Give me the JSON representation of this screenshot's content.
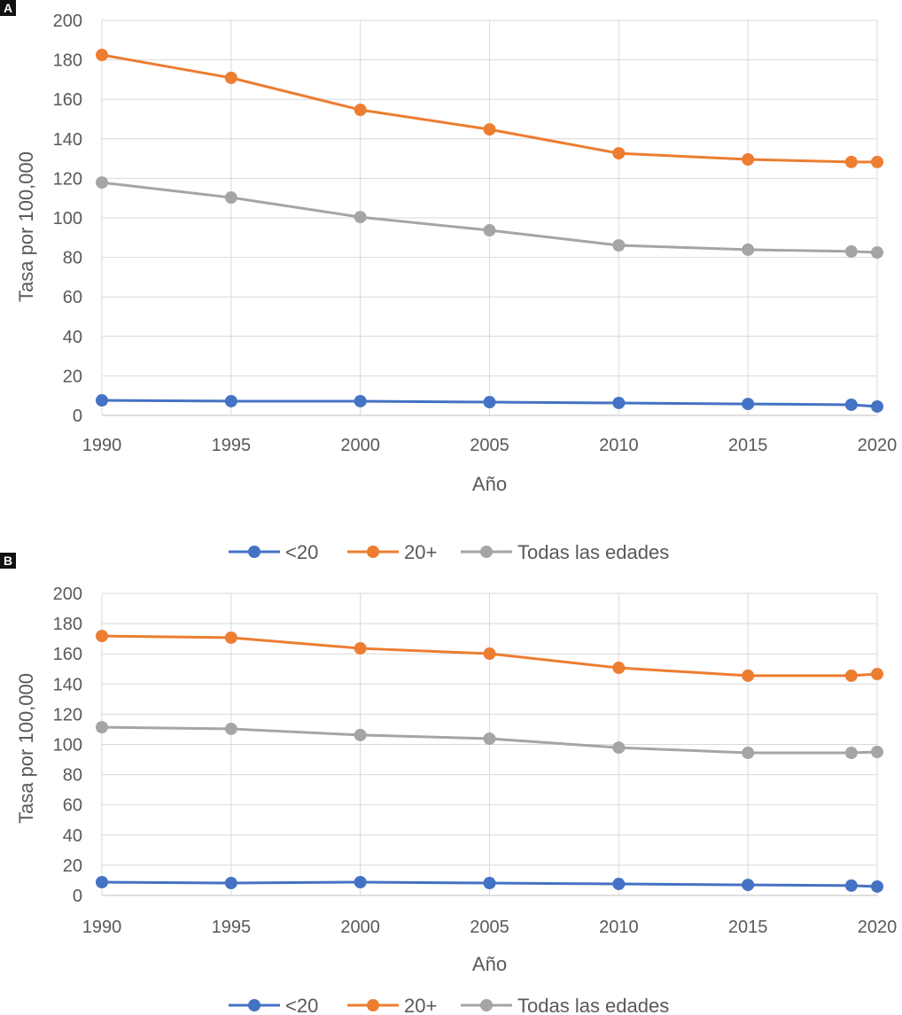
{
  "chart_data": [
    {
      "panel_label": "A",
      "type": "line",
      "xlabel": "Año",
      "ylabel": "Tasa por 100,000",
      "x": [
        1990,
        1995,
        2000,
        2005,
        2010,
        2015,
        2019,
        2020
      ],
      "xticks": [
        1990,
        1995,
        2000,
        2005,
        2010,
        2015,
        2020
      ],
      "xlim": [
        1990,
        2020
      ],
      "ylim": [
        0,
        200
      ],
      "yticks": [
        0,
        20,
        40,
        60,
        80,
        100,
        120,
        140,
        160,
        180,
        200
      ],
      "grid": true,
      "legend_position": "bottom",
      "series": [
        {
          "name": "<20",
          "color": "#4472C4",
          "values": [
            7.6,
            7.2,
            7.2,
            6.7,
            6.3,
            5.8,
            5.4,
            4.5
          ]
        },
        {
          "name": "20+",
          "color": "#ED7D31",
          "values": [
            182.5,
            170.9,
            154.7,
            144.8,
            132.7,
            129.6,
            128.3,
            128.3
          ]
        },
        {
          "name": "Todas las edades",
          "color": "#A5A5A5",
          "values": [
            117.9,
            110.3,
            100.4,
            93.7,
            86.1,
            83.9,
            83.0,
            82.5
          ]
        }
      ]
    },
    {
      "panel_label": "B",
      "type": "line",
      "xlabel": "Año",
      "ylabel": "Tasa por 100,000",
      "x": [
        1990,
        1995,
        2000,
        2005,
        2010,
        2015,
        2019,
        2020
      ],
      "xticks": [
        1990,
        1995,
        2000,
        2005,
        2010,
        2015,
        2020
      ],
      "xlim": [
        1990,
        2020
      ],
      "ylim": [
        0,
        200
      ],
      "yticks": [
        0,
        20,
        40,
        60,
        80,
        100,
        120,
        140,
        160,
        180,
        200
      ],
      "grid": true,
      "legend_position": "bottom",
      "series": [
        {
          "name": "<20",
          "color": "#4472C4",
          "values": [
            8.8,
            8.2,
            8.8,
            8.2,
            7.6,
            7.0,
            6.5,
            5.9
          ]
        },
        {
          "name": "20+",
          "color": "#ED7D31",
          "values": [
            171.8,
            170.7,
            163.6,
            160.1,
            150.7,
            145.5,
            145.5,
            146.6
          ]
        },
        {
          "name": "Todas las edades",
          "color": "#A5A5A5",
          "values": [
            111.4,
            110.3,
            106.2,
            103.8,
            97.9,
            94.4,
            94.4,
            95.0
          ]
        }
      ]
    }
  ]
}
